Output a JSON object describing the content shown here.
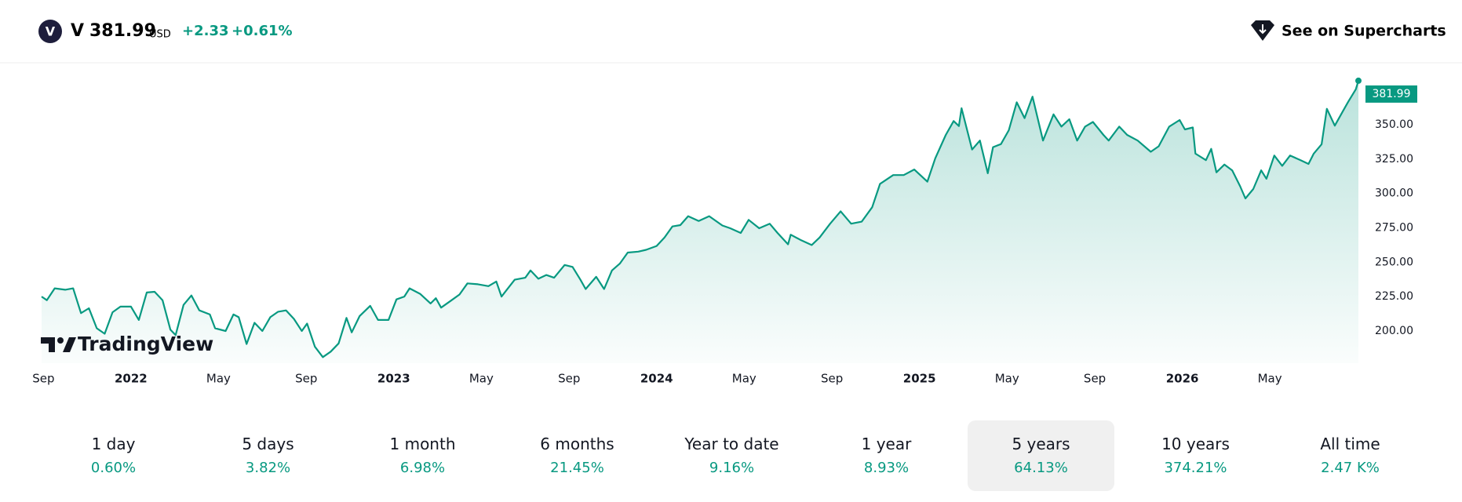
{
  "header": {
    "logo_letter": "V",
    "symbol": "V",
    "price": "381.99",
    "currency": "USD",
    "change": "+2.33",
    "change_percent": "+0.61%",
    "link": "See on Supercharts"
  },
  "watermark": "TradingView",
  "chart_data": {
    "type": "area",
    "x": [
      2021.66,
      2021.68,
      2021.71,
      2021.75,
      2021.78,
      2021.81,
      2021.84,
      2021.87,
      2021.9,
      2021.93,
      2021.96,
      2022,
      2022.03,
      2022.06,
      2022.09,
      2022.12,
      2022.15,
      2022.17,
      2022.2,
      2022.23,
      2022.26,
      2022.3,
      2022.32,
      2022.36,
      2022.39,
      2022.41,
      2022.44,
      2022.47,
      2022.5,
      2022.53,
      2022.56,
      2022.59,
      2022.62,
      2022.65,
      2022.67,
      2022.7,
      2022.73,
      2022.76,
      2022.79,
      2022.82,
      2022.84,
      2022.87,
      2022.91,
      2022.94,
      2022.98,
      2023.01,
      2023.04,
      2023.06,
      2023.1,
      2023.14,
      2023.16,
      2023.18,
      2023.22,
      2023.25,
      2023.28,
      2023.32,
      2023.36,
      2023.39,
      2023.41,
      2023.43,
      2023.46,
      2023.5,
      2023.52,
      2023.55,
      2023.58,
      2023.61,
      2023.65,
      2023.68,
      2023.71,
      2023.73,
      2023.77,
      2023.8,
      2023.83,
      2023.86,
      2023.89,
      2023.93,
      2023.96,
      2024,
      2024.03,
      2024.06,
      2024.09,
      2024.12,
      2024.16,
      2024.2,
      2024.25,
      2024.28,
      2024.32,
      2024.35,
      2024.39,
      2024.43,
      2024.46,
      2024.5,
      2024.51,
      2024.55,
      2024.59,
      2024.62,
      2024.66,
      2024.7,
      2024.74,
      2024.78,
      2024.82,
      2024.85,
      2024.9,
      2024.94,
      2024.98,
      2025.03,
      2025.06,
      2025.1,
      2025.13,
      2025.15,
      2025.16,
      2025.2,
      2025.23,
      2025.26,
      2025.28,
      2025.31,
      2025.34,
      2025.37,
      2025.4,
      2025.43,
      2025.47,
      2025.51,
      2025.54,
      2025.57,
      2025.6,
      2025.63,
      2025.66,
      2025.7,
      2025.72,
      2025.76,
      2025.79,
      2025.83,
      2025.88,
      2025.91,
      2025.95,
      2025.99,
      2026.01,
      2026.04,
      2026.05,
      2026.09,
      2026.11,
      2026.13,
      2026.16,
      2026.19,
      2026.22,
      2026.24,
      2026.27,
      2026.3,
      2026.32,
      2026.35,
      2026.38,
      2026.41,
      2026.45,
      2026.48,
      2026.5,
      2026.53,
      2026.55,
      2026.58,
      2026.61,
      2026.63,
      2026.66,
      2026.67
    ],
    "series": [
      {
        "color": "#089981",
        "values": [
          225,
          222.4,
          231,
          230,
          231,
          213,
          216.5,
          202,
          198,
          213.6,
          217.7,
          217.7,
          208,
          228,
          228.5,
          222.4,
          201,
          197,
          219,
          225.8,
          215,
          212,
          202,
          200,
          212,
          210,
          190.5,
          206,
          200,
          210,
          214,
          215,
          208.8,
          200,
          205.4,
          188.5,
          181,
          185,
          191,
          209.5,
          199,
          210.9,
          218.3,
          208,
          208,
          223,
          225,
          231,
          227,
          220,
          223.8,
          217,
          222.4,
          226.5,
          234.6,
          234,
          232.6,
          236,
          225,
          230,
          237.3,
          238.7,
          244,
          238,
          240.7,
          238.7,
          248,
          246.6,
          237.3,
          230.5,
          239.4,
          230.5,
          244,
          249,
          257,
          257.7,
          259,
          261.8,
          268,
          276,
          277,
          283.5,
          280,
          283.5,
          276.7,
          274.7,
          271.3,
          280.8,
          274.7,
          278,
          271.3,
          263,
          270,
          266,
          262.5,
          268,
          278,
          287,
          278,
          279.5,
          290,
          307,
          313.4,
          313.4,
          317.4,
          308.6,
          325.6,
          342.6,
          352.7,
          349,
          362,
          332,
          338.5,
          314.7,
          333.7,
          335.9,
          346,
          366.3,
          354.8,
          370.4,
          338.5,
          357.5,
          348.6,
          354,
          338.5,
          348.6,
          352,
          342.6,
          338.5,
          348.6,
          342.6,
          338.5,
          330.3,
          334.3,
          348.6,
          353.4,
          346.6,
          348,
          329,
          324.2,
          332.4,
          315.4,
          321,
          316.8,
          305.2,
          296.4,
          303.2,
          316.8,
          310.7,
          327.6,
          320.1,
          327.6,
          324.2,
          321.5,
          329,
          335.8,
          361.6,
          349.3,
          359.5,
          366.3,
          375.8,
          381.99
        ]
      }
    ],
    "xlim": [
      2021.66,
      2026.67
    ],
    "xticks": [
      {
        "value": 2021.667,
        "label": "Sep"
      },
      2022,
      {
        "value": 2022.333,
        "label": "May"
      },
      {
        "value": 2022.667,
        "label": "Sep"
      },
      2023,
      {
        "value": 2023.333,
        "label": "May"
      },
      {
        "value": 2023.667,
        "label": "Sep"
      },
      2024,
      {
        "value": 2024.333,
        "label": "May"
      },
      {
        "value": 2024.667,
        "label": "Sep"
      },
      2025,
      {
        "value": 2025.333,
        "label": "May"
      },
      {
        "value": 2025.667,
        "label": "Sep"
      },
      2026,
      {
        "value": 2026.333,
        "label": "May"
      }
    ],
    "ylim": [
      176.6,
      386.5
    ],
    "yticks": [
      {
        "value": 200,
        "label": "200.00"
      },
      {
        "value": 225,
        "label": "225.00"
      },
      {
        "value": 250,
        "label": "250.00"
      },
      {
        "value": 275,
        "label": "275.00"
      },
      {
        "value": 300,
        "label": "300.00"
      },
      {
        "value": 325,
        "label": "325.00"
      },
      {
        "value": 350,
        "label": "350.00"
      }
    ],
    "grid": false
  },
  "ranges": [
    {
      "label": "1 day",
      "change": "0.60%"
    },
    {
      "label": "5 days",
      "change": "3.82%"
    },
    {
      "label": "1 month",
      "change": "6.98%"
    },
    {
      "label": "6 months",
      "change": "21.45%"
    },
    {
      "label": "Year to date",
      "change": "9.16%"
    },
    {
      "label": "1 year",
      "change": "8.93%"
    },
    {
      "label": "5 years",
      "change": "64.13%",
      "selected": true
    },
    {
      "label": "10 years",
      "change": "374.21%"
    },
    {
      "label": "All time",
      "change": "2.47 K%"
    }
  ]
}
